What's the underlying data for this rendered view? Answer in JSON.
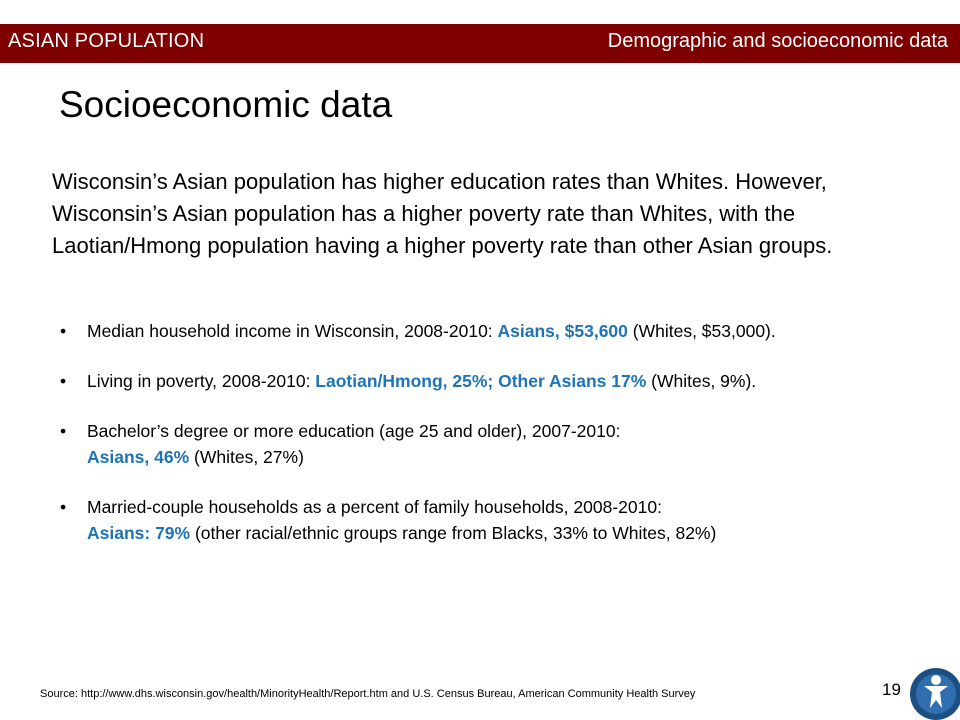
{
  "header": {
    "left_label": "ASIAN POPULATION",
    "right_label": "Demographic and socioeconomic data",
    "bar_color": "#7f0000"
  },
  "title": "Socioeconomic data",
  "intro": "Wisconsin’s Asian population has higher education rates than Whites. However, Wisconsin’s Asian population has a higher poverty rate than Whites, with the Laotian/Hmong population having a higher poverty rate than other Asian groups.",
  "highlight_color": "#1f73b7",
  "bullets": [
    {
      "bullet": "•",
      "lead": "Median household income in Wisconsin, 2008-2010: ",
      "highlight": "Asians, $53,600",
      "trail": " (Whites, $53,000)."
    },
    {
      "bullet": "•",
      "lead": "Living in poverty, 2008-2010: ",
      "highlight": "Laotian/Hmong, 25%; Other Asians 17%",
      "trail": " (Whites, 9%)."
    },
    {
      "bullet": "•",
      "lead": "Bachelor’s degree or more education (age 25 and older), 2007-2010: ",
      "highlight": "Asians, 46%",
      "trail": " (Whites, 27%)"
    },
    {
      "bullet": "•",
      "lead": "Married-couple households as a percent of family households, 2008-2010: ",
      "highlight": "Asians: 79%",
      "trail": " (other racial/ethnic groups range from Blacks, 33% to Whites, 82%)"
    }
  ],
  "source": "Source: http://www.dhs.wisconsin.gov/health/MinorityHealth/Report.htm and U.S. Census Bureau, American Community Health Survey",
  "page_number": "19",
  "logo_icon": "person-figure-logo-icon"
}
